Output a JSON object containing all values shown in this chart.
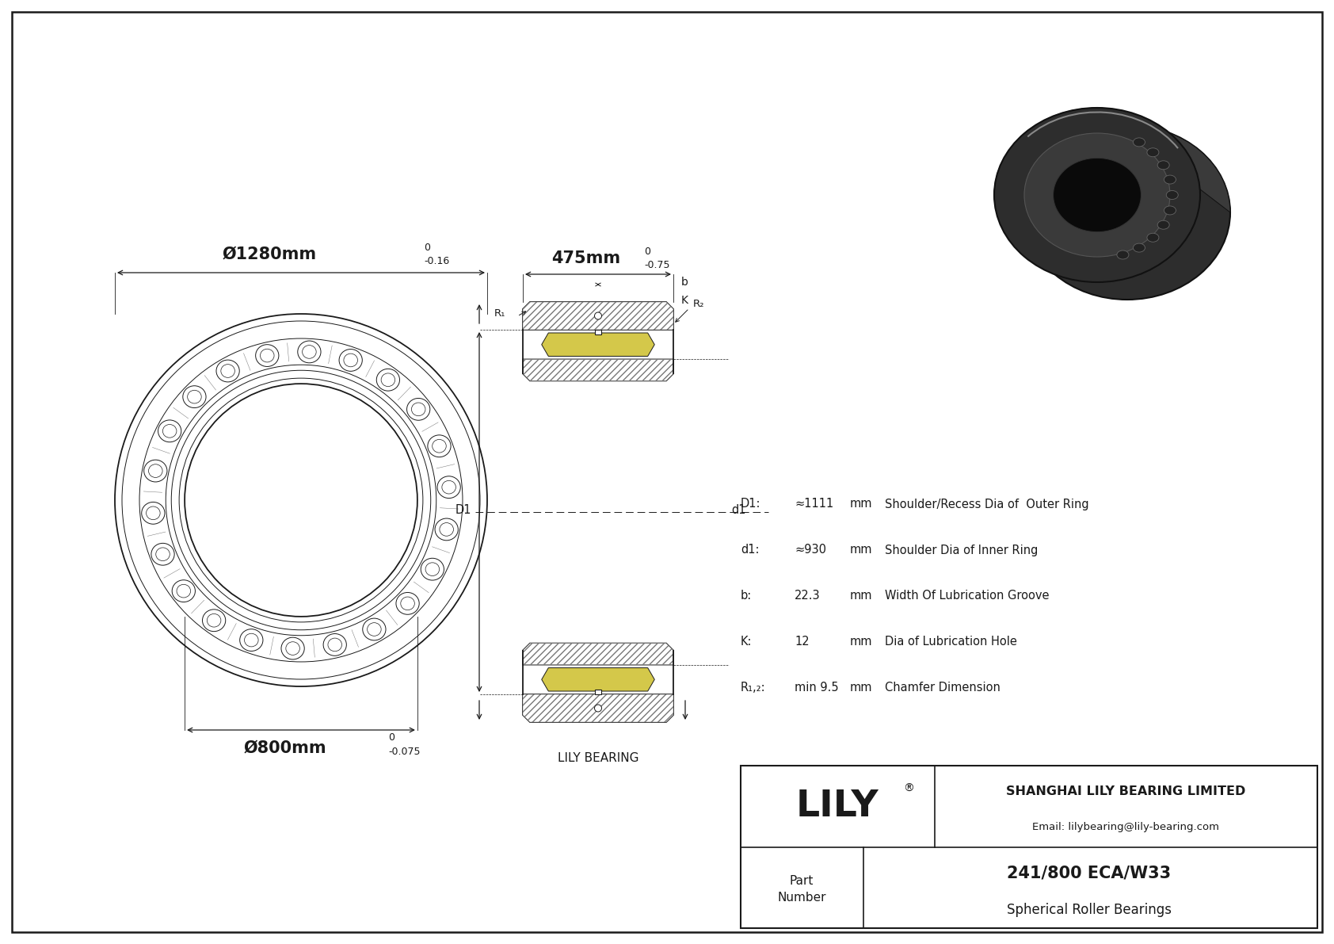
{
  "bg_color": "#ffffff",
  "line_color": "#1a1a1a",
  "title": "241/800 ECA/W33",
  "subtitle": "Spherical Roller Bearings",
  "company": "SHANGHAI LILY BEARING LIMITED",
  "email": "Email: lilybearing@lily-bearing.com",
  "part_label": "Part\nNumber",
  "lily_text": "LILY",
  "brand": "LILY BEARING",
  "outer_diameter_label": "Ø1280mm",
  "inner_diameter_label": "Ø800mm",
  "width_label": "475mm",
  "specs": [
    [
      "D1:",
      "≈1111",
      "mm",
      "Shoulder/Recess Dia of  Outer Ring"
    ],
    [
      "d1:",
      "≈930",
      "mm",
      "Shoulder Dia of Inner Ring"
    ],
    [
      "b:",
      "22.3",
      "mm",
      "Width Of Lubrication Groove"
    ],
    [
      "K:",
      "12",
      "mm",
      "Dia of Lubrication Hole"
    ],
    [
      "R₁,₂:",
      "min 9.5",
      "mm",
      "Chamfer Dimension"
    ]
  ],
  "yellow_color": "#d4c84a",
  "n_rollers": 22
}
